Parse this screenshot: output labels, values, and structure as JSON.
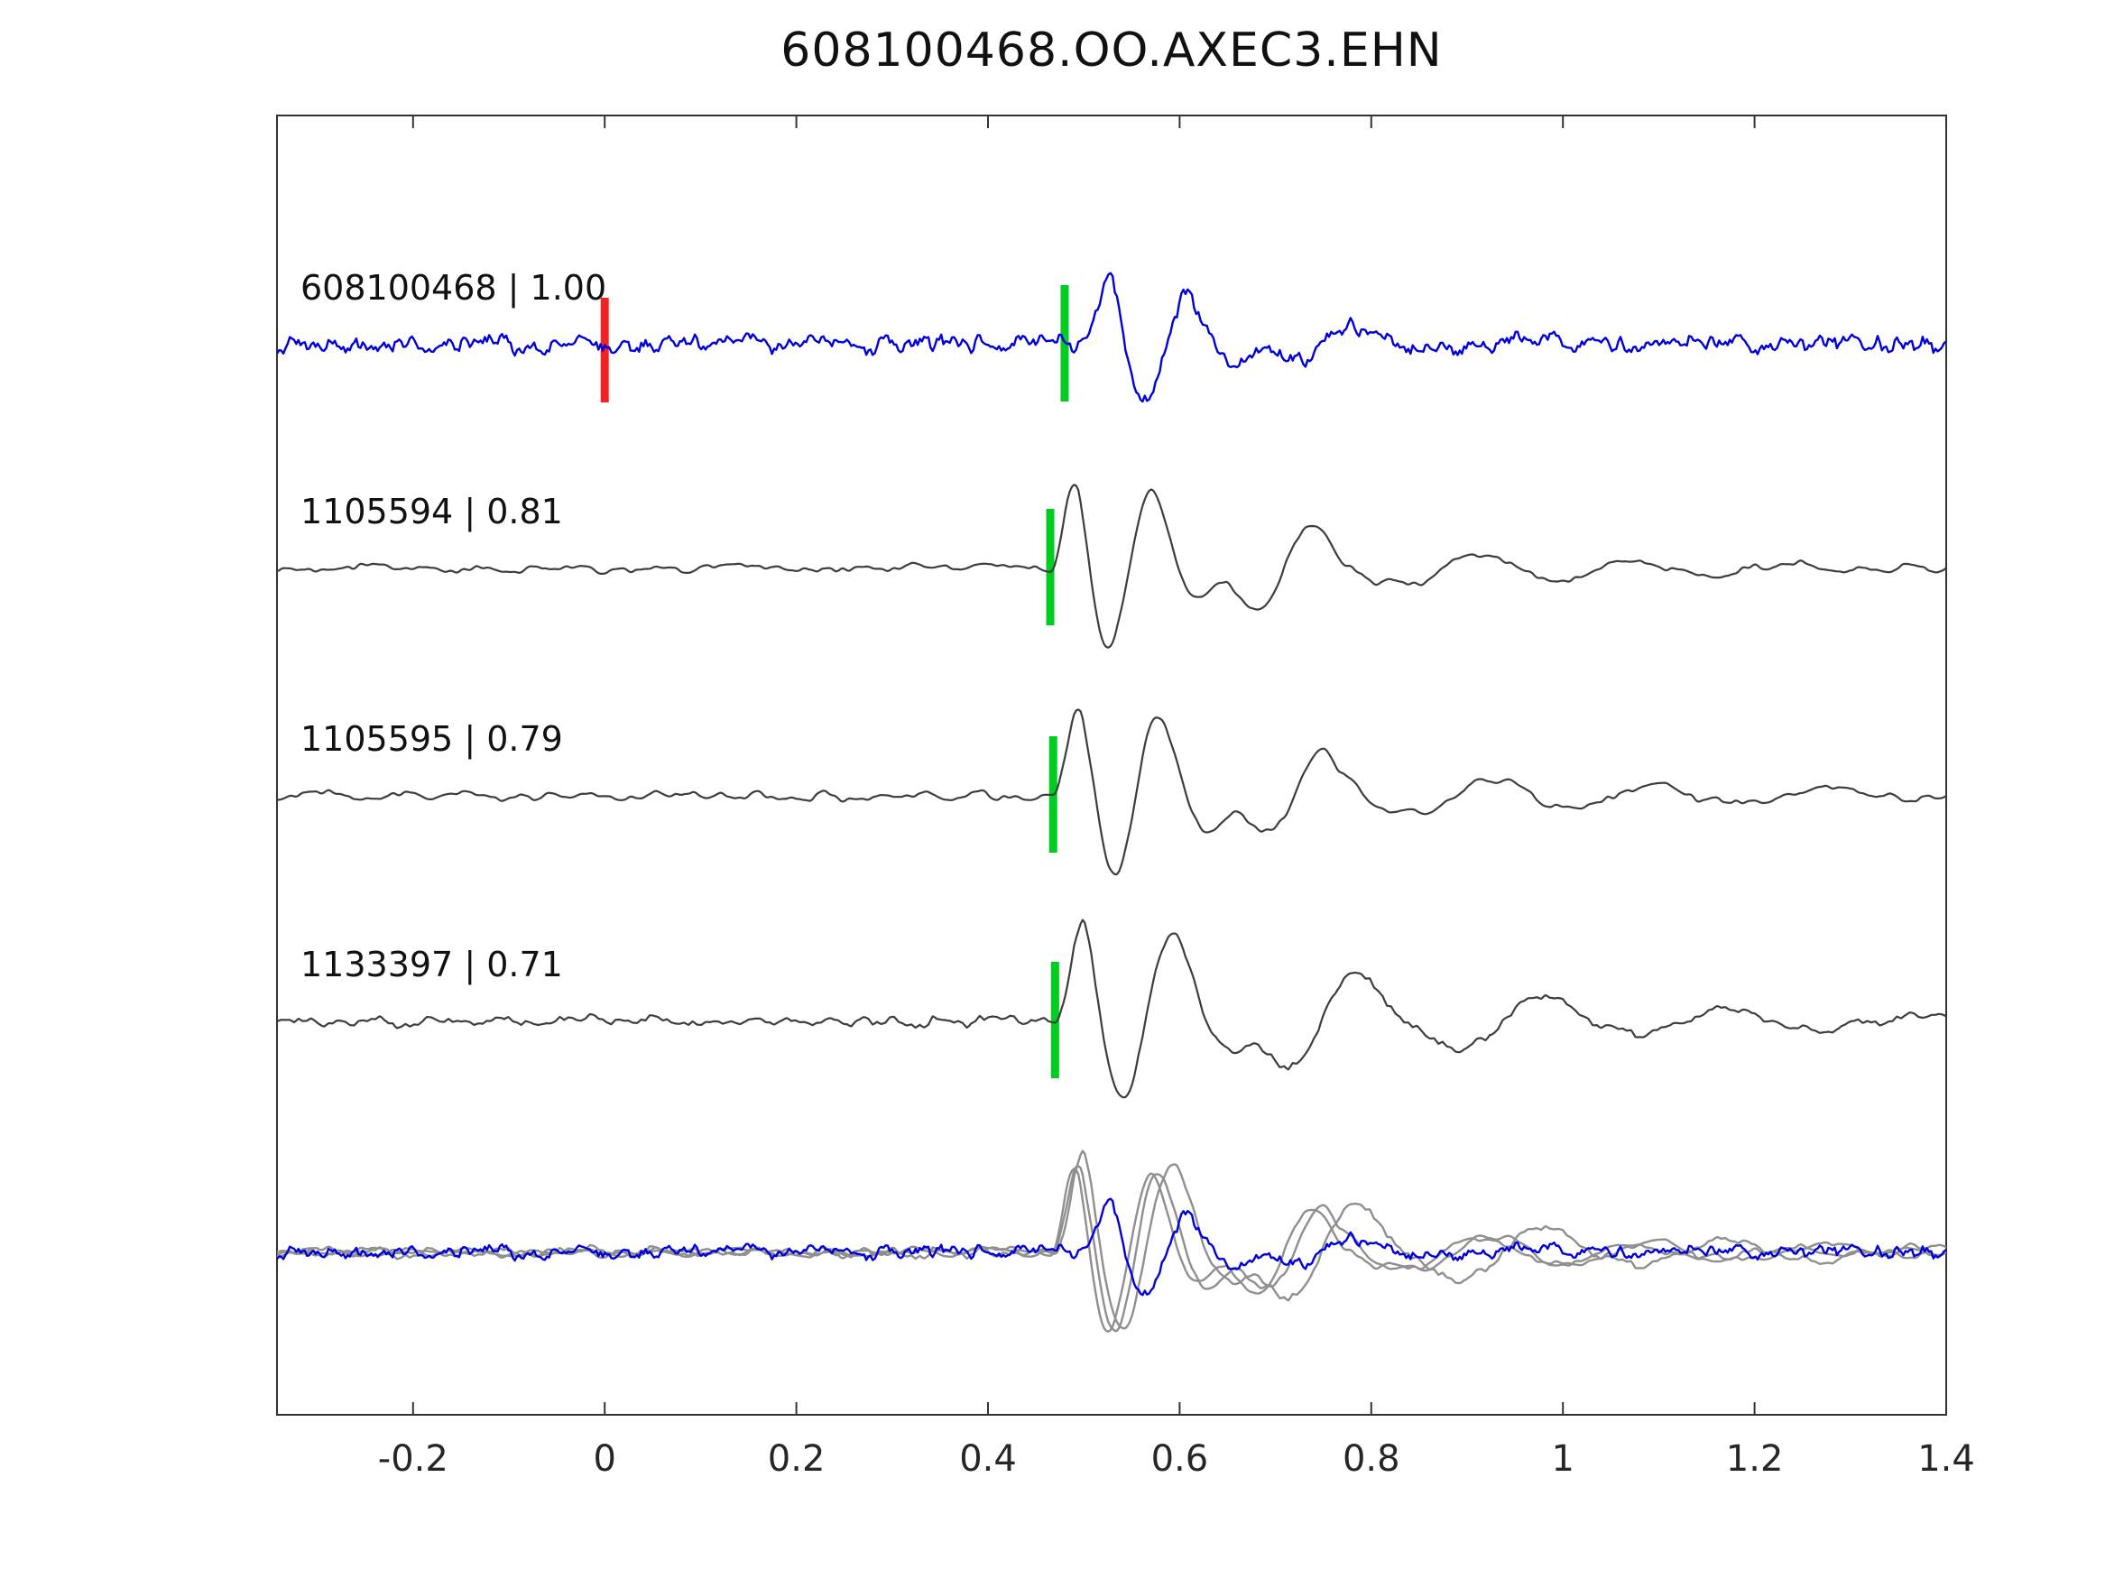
{
  "title": "608100468.OO.AXEC3.EHN",
  "chart_data": {
    "type": "line",
    "title": "608100468.OO.AXEC3.EHN",
    "xlabel": "",
    "ylabel": "",
    "xlim": [
      -0.342,
      1.4
    ],
    "x_ticks": [
      -0.2,
      0,
      0.2,
      0.4,
      0.6,
      0.8,
      1,
      1.2,
      1.4
    ],
    "x_tick_labels": [
      "-0.2",
      "0",
      "0.2",
      "0.4",
      "0.6",
      "0.8",
      "1",
      "1.2",
      "1.4"
    ],
    "grid": false,
    "legend": "none",
    "axis_color": "#333333",
    "tick_label_color": "#262626",
    "trace_label_color": "#111111",
    "traces": [
      {
        "event_id": "608100468",
        "correlation": "1.00",
        "label": "608100468 | 1.00",
        "color": "#0000dd",
        "row": 0,
        "pick_time": 0.48,
        "pick_color": "#00cc22",
        "origin_time": 0.0,
        "origin_color": "#f32222",
        "synthesis": {
          "seed": 7,
          "noise_amp": 12,
          "noise_step": 3,
          "onset": 0.5,
          "amp": 125,
          "freq": 11.5,
          "decay": 0.085,
          "amp2": 38,
          "freq2": 5.5,
          "decay2": 0.22,
          "delay2": 0.06
        }
      },
      {
        "event_id": "1105594",
        "correlation": "0.81",
        "label": "1105594 | 0.81",
        "color": "#3d3d3d",
        "row": 1,
        "pick_time": 0.465,
        "pick_color": "#00cc22",
        "synthesis": {
          "seed": 21,
          "noise_amp": 7,
          "noise_step": 8,
          "onset": 0.465,
          "amp": 150,
          "freq": 12.0,
          "decay": 0.11,
          "amp2": 75,
          "freq2": 6.0,
          "decay2": 0.26,
          "delay2": 0.07
        }
      },
      {
        "event_id": "1105595",
        "correlation": "0.79",
        "label": "1105595 | 0.79",
        "color": "#3d3d3d",
        "row": 2,
        "pick_time": 0.468,
        "pick_color": "#00cc22",
        "synthesis": {
          "seed": 35,
          "noise_amp": 7,
          "noise_step": 8,
          "onset": 0.468,
          "amp": 150,
          "freq": 11.5,
          "decay": 0.11,
          "amp2": 75,
          "freq2": 5.8,
          "decay2": 0.27,
          "delay2": 0.07
        }
      },
      {
        "event_id": "1133397",
        "correlation": "0.71",
        "label": "1133397 | 0.71",
        "color": "#3d3d3d",
        "row": 3,
        "pick_time": 0.47,
        "pick_color": "#00cc22",
        "synthesis": {
          "seed": 49,
          "noise_amp": 8,
          "noise_step": 7,
          "onset": 0.47,
          "amp": 155,
          "freq": 10.5,
          "decay": 0.12,
          "amp2": 85,
          "freq2": 5.2,
          "decay2": 0.32,
          "delay2": 0.08
        }
      }
    ],
    "overlay": {
      "gray_color": "#8f8f8f",
      "blue_color": "#0000dd",
      "blue_scale": 0.75,
      "gray_scale": 1.0
    }
  }
}
